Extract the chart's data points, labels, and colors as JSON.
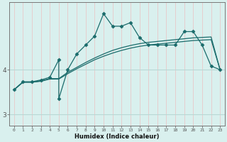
{
  "xlabel": "Humidex (Indice chaleur)",
  "bg_color": "#d9f0ee",
  "grid_color_v": "#e8c8c8",
  "grid_color_h": "#b8d8d5",
  "line_color": "#1a6b6b",
  "x_ticks": [
    0,
    1,
    2,
    3,
    4,
    5,
    6,
    7,
    8,
    9,
    10,
    11,
    12,
    13,
    14,
    15,
    16,
    17,
    18,
    19,
    20,
    21,
    22,
    23
  ],
  "y_ticks": [
    3,
    4
  ],
  "ylim": [
    2.75,
    5.5
  ],
  "xlim": [
    -0.5,
    23.5
  ],
  "series1_x": [
    0,
    1,
    2,
    3,
    4,
    5,
    6,
    7,
    8,
    9,
    10,
    11,
    12,
    13,
    14,
    15,
    16,
    17,
    18,
    19,
    20,
    21,
    22,
    23
  ],
  "series1_y": [
    3.55,
    3.72,
    3.72,
    3.74,
    3.79,
    3.79,
    3.91,
    4.02,
    4.12,
    4.22,
    4.3,
    4.37,
    4.43,
    4.48,
    4.52,
    4.55,
    4.57,
    4.59,
    4.61,
    4.63,
    4.65,
    4.66,
    4.67,
    4.0
  ],
  "series2_x": [
    0,
    1,
    2,
    3,
    4,
    5,
    6,
    7,
    8,
    9,
    10,
    11,
    12,
    13,
    14,
    15,
    16,
    17,
    18,
    19,
    20,
    21,
    22,
    23
  ],
  "series2_y": [
    3.55,
    3.72,
    3.72,
    3.75,
    3.8,
    3.8,
    3.94,
    4.05,
    4.16,
    4.26,
    4.35,
    4.43,
    4.49,
    4.54,
    4.58,
    4.61,
    4.63,
    4.65,
    4.67,
    4.69,
    4.71,
    4.72,
    4.73,
    4.0
  ],
  "series3_x": [
    0,
    1,
    2,
    3,
    4,
    5,
    5,
    6,
    7,
    8,
    9,
    10,
    11,
    12,
    13,
    14,
    15,
    16,
    17,
    18,
    19,
    20,
    21,
    22,
    23
  ],
  "series3_y": [
    3.55,
    3.73,
    3.73,
    3.77,
    3.83,
    4.22,
    3.35,
    4.0,
    4.35,
    4.55,
    4.75,
    5.25,
    4.97,
    4.97,
    5.05,
    4.72,
    4.55,
    4.55,
    4.55,
    4.55,
    4.85,
    4.85,
    4.55,
    4.08,
    4.0
  ]
}
